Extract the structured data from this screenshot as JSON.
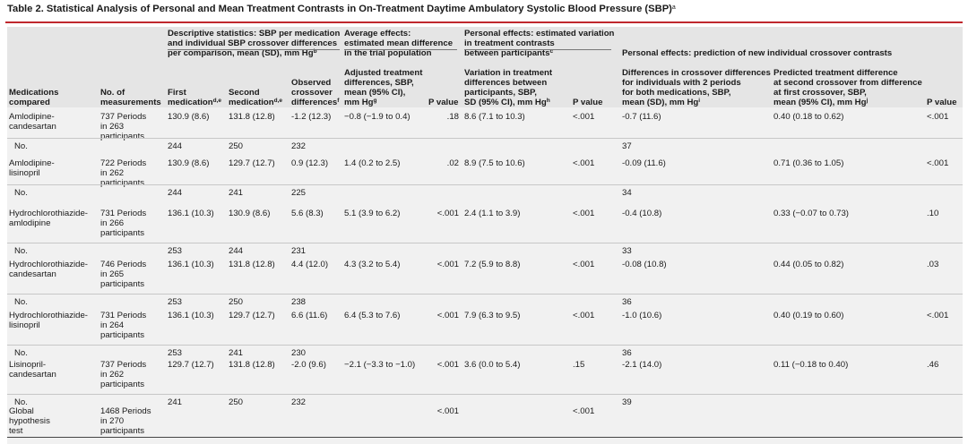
{
  "title": "Table 2. Statistical Analysis of Personal and Mean Treatment Contrasts in On-Treatment Daytime Ambulatory Systolic Blood Pressure (SBP)",
  "title_sup": "a",
  "groups": {
    "descriptive": [
      "Descriptive statistics: SBP per medication",
      "and individual SBP crossover differences",
      "per comparison, mean (SD), mm Hg"
    ],
    "descriptive_sup": "b",
    "average": [
      "Average effects:",
      "estimated mean difference",
      "in the trial population"
    ],
    "variation": [
      "Personal effects: estimated variation",
      "in treatment contrasts",
      "between participants"
    ],
    "variation_sup": "c",
    "prediction": "Personal effects: prediction of new individual crossover contrasts"
  },
  "columns": {
    "medications": [
      "Medications",
      "compared"
    ],
    "measurements": [
      "No. of",
      "measurements"
    ],
    "first": [
      "First",
      "medication"
    ],
    "first_sup": "d,e",
    "second": [
      "Second",
      "medication"
    ],
    "second_sup": "d,e",
    "observed": [
      "Observed",
      "crossover",
      "differences"
    ],
    "observed_sup": "f",
    "adjusted": [
      "Adjusted treatment",
      "differences, SBP,",
      "mean (95% CI),",
      "mm Hg"
    ],
    "adjusted_sup": "g",
    "pvalue": "P value",
    "variation": [
      "Variation in treatment",
      "differences between",
      "participants, SBP,",
      "SD (95% CI), mm Hg"
    ],
    "variation_sup": "h",
    "pvalue2": "P value",
    "differences": [
      "Differences in crossover differences",
      "for individuals with 2 periods",
      "for both medications, SBP,",
      "mean (SD), mm Hg"
    ],
    "differences_sup": "i",
    "predicted": [
      "Predicted treatment difference",
      "at second crossover from difference",
      "at first crossover, SBP,",
      "mean (95% CI), mm Hg"
    ],
    "predicted_sup": "j",
    "pvalue3": "P value"
  },
  "rows": [
    {
      "med": [
        "Amlodipine-",
        "candesartan"
      ],
      "meas": [
        "737 Periods",
        "in 263",
        "participants"
      ],
      "first": "130.9 (8.6)",
      "second": "131.8 (12.8)",
      "obs": "-1.2 (12.3)",
      "adj": "−0.8 (−1.9 to 0.4)",
      "p1": ".18",
      "var": "8.6 (7.1 to 10.3)",
      "p2": "<.001",
      "diff": "-0.7 (11.6)",
      "pred": "0.40 (0.18 to 0.62)",
      "p3": "<.001",
      "n": {
        "label": "No.",
        "first": "244",
        "second": "250",
        "obs": "232",
        "diff": "37"
      }
    },
    {
      "med": [
        "Amlodipine-",
        "lisinopril"
      ],
      "meas": [
        "722 Periods",
        "in 262",
        "participants"
      ],
      "first": "130.9 (8.6)",
      "second": "129.7 (12.7)",
      "obs": "0.9 (12.3)",
      "adj": "1.4 (0.2 to 2.5)",
      "p1": ".02",
      "var": "8.9 (7.5 to 10.6)",
      "p2": "<.001",
      "diff": "-0.09 (11.6)",
      "pred": "0.71 (0.36 to 1.05)",
      "p3": "<.001",
      "n": {
        "label": "No.",
        "first": "244",
        "second": "241",
        "obs": "225",
        "diff": "34"
      }
    },
    {
      "med": [
        "Hydrochlorothiazide-",
        "amlodipine"
      ],
      "meas": [
        "731 Periods",
        "in 266",
        "participants"
      ],
      "first": "136.1 (10.3)",
      "second": "130.9 (8.6)",
      "obs": "5.6 (8.3)",
      "adj": "5.1 (3.9 to 6.2)",
      "p1": "<.001",
      "var": "2.4 (1.1 to 3.9)",
      "p2": "<.001",
      "diff": "-0.4 (10.8)",
      "pred": "0.33 (−0.07 to 0.73)",
      "p3": ".10",
      "n": {
        "label": "No.",
        "first": "253",
        "second": "244",
        "obs": "231",
        "diff": "33"
      }
    },
    {
      "med": [
        "Hydrochlorothiazide-",
        "candesartan"
      ],
      "meas": [
        "746 Periods",
        "in 265",
        "participants"
      ],
      "first": "136.1 (10.3)",
      "second": "131.8 (12.8)",
      "obs": "4.4 (12.0)",
      "adj": "4.3 (3.2 to 5.4)",
      "p1": "<.001",
      "var": "7.2 (5.9 to 8.8)",
      "p2": "<.001",
      "diff": "-0.08 (10.8)",
      "pred": "0.44 (0.05 to 0.82)",
      "p3": ".03",
      "n": {
        "label": "No.",
        "first": "253",
        "second": "250",
        "obs": "238",
        "diff": "36"
      }
    },
    {
      "med": [
        "Hydrochlorothiazide-",
        "lisinopril"
      ],
      "meas": [
        "731 Periods",
        "in 264",
        "participants"
      ],
      "first": "136.1 (10.3)",
      "second": "129.7 (12.7)",
      "obs": "6.6 (11.6)",
      "adj": "6.4 (5.3 to 7.6)",
      "p1": "<.001",
      "var": "7.9 (6.3 to 9.5)",
      "p2": "<.001",
      "diff": "-1.0 (10.6)",
      "pred": "0.40 (0.19 to 0.60)",
      "p3": "<.001",
      "n": {
        "label": "No.",
        "first": "253",
        "second": "241",
        "obs": "230",
        "diff": "36"
      }
    },
    {
      "med": [
        "Lisinopril-",
        "candesartan"
      ],
      "meas": [
        "737 Periods",
        "in 262",
        "participants"
      ],
      "first": "129.7 (12.7)",
      "second": "131.8 (12.8)",
      "obs": "-2.0 (9.6)",
      "adj": "−2.1 (−3.3 to −1.0)",
      "p1": "<.001",
      "var": "3.6 (0.0 to 5.4)",
      "p2": ".15",
      "diff": "-2.1 (14.0)",
      "pred": "0.11 (−0.18 to 0.40)",
      "p3": ".46",
      "n": {
        "label": "No.",
        "first": "241",
        "second": "250",
        "obs": "232",
        "diff": "39"
      }
    }
  ],
  "global": {
    "med": [
      "Global",
      "hypothesis",
      "test"
    ],
    "meas": [
      "1468 Periods",
      "in 270",
      "participants"
    ],
    "p1": "<.001",
    "p2": "<.001"
  }
}
